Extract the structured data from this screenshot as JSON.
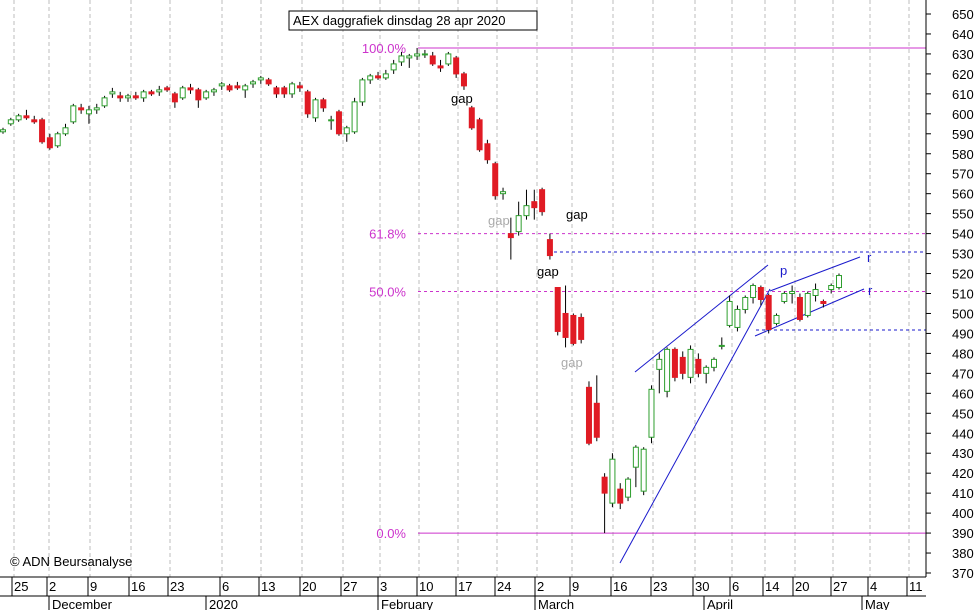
{
  "title": "AEX daggrafiek dinsdag 28 apr 2020",
  "copyright": "© ADN Beursanalyse",
  "colors": {
    "up": "#2e9e2e",
    "down": "#e01b24",
    "wick": "#000000",
    "fib": "#cc33cc",
    "trend": "#1a1acc",
    "grid": "#bdbdbd"
  },
  "chart_data": {
    "type": "candlestick",
    "title": "AEX daggrafiek dinsdag 28 apr 2020",
    "ylim": [
      365,
      655
    ],
    "yticks": [
      370,
      380,
      390,
      400,
      410,
      420,
      430,
      440,
      450,
      460,
      470,
      480,
      490,
      500,
      510,
      520,
      530,
      540,
      550,
      560,
      570,
      580,
      590,
      600,
      610,
      620,
      630,
      640,
      650
    ],
    "grid": "vertical dashed",
    "x_tick_labels": [
      "25",
      "2",
      "9",
      "16",
      "23",
      "6",
      "13",
      "20",
      "27",
      "3",
      "10",
      "17",
      "24",
      "2",
      "9",
      "16",
      "23",
      "30",
      "6",
      "14",
      "20",
      "27",
      "4",
      "11"
    ],
    "months": [
      "December",
      "2020",
      "February",
      "March",
      "April",
      "May"
    ],
    "fibonacci": [
      {
        "label": "100.0%",
        "value": 633
      },
      {
        "label": "61.8%",
        "value": 540
      },
      {
        "label": "50.0%",
        "value": 511
      },
      {
        "label": "0.0%",
        "value": 390
      }
    ],
    "annotations": [
      "gap",
      "gap",
      "gap",
      "gap",
      "gap",
      "p",
      "r",
      "r"
    ],
    "candles": [
      {
        "o": 591,
        "h": 593,
        "l": 590,
        "c": 592
      },
      {
        "o": 595,
        "h": 598,
        "l": 594,
        "c": 597
      },
      {
        "o": 597,
        "h": 600,
        "l": 596,
        "c": 599
      },
      {
        "o": 599,
        "h": 602,
        "l": 597,
        "c": 598
      },
      {
        "o": 597,
        "h": 599,
        "l": 595,
        "c": 596
      },
      {
        "o": 597,
        "h": 598,
        "l": 585,
        "c": 586
      },
      {
        "o": 588,
        "h": 590,
        "l": 582,
        "c": 583
      },
      {
        "o": 584,
        "h": 591,
        "l": 583,
        "c": 590
      },
      {
        "o": 590,
        "h": 595,
        "l": 589,
        "c": 593
      },
      {
        "o": 596,
        "h": 605,
        "l": 595,
        "c": 604
      },
      {
        "o": 603,
        "h": 605,
        "l": 600,
        "c": 602
      },
      {
        "o": 600,
        "h": 604,
        "l": 595,
        "c": 602
      },
      {
        "o": 602,
        "h": 605,
        "l": 600,
        "c": 603
      },
      {
        "o": 604,
        "h": 609,
        "l": 603,
        "c": 608
      },
      {
        "o": 610,
        "h": 613,
        "l": 608,
        "c": 611
      },
      {
        "o": 609,
        "h": 611,
        "l": 606,
        "c": 608
      },
      {
        "o": 608,
        "h": 610,
        "l": 606,
        "c": 609
      },
      {
        "o": 609,
        "h": 611,
        "l": 607,
        "c": 608
      },
      {
        "o": 608,
        "h": 612,
        "l": 606,
        "c": 611
      },
      {
        "o": 611,
        "h": 612,
        "l": 609,
        "c": 610
      },
      {
        "o": 611,
        "h": 614,
        "l": 609,
        "c": 612
      },
      {
        "o": 613,
        "h": 614,
        "l": 611,
        "c": 612
      },
      {
        "o": 610,
        "h": 611,
        "l": 603,
        "c": 606
      },
      {
        "o": 608,
        "h": 614,
        "l": 607,
        "c": 613
      },
      {
        "o": 613,
        "h": 615,
        "l": 610,
        "c": 612
      },
      {
        "o": 612,
        "h": 613,
        "l": 603,
        "c": 607
      },
      {
        "o": 608,
        "h": 612,
        "l": 607,
        "c": 611
      },
      {
        "o": 611,
        "h": 613,
        "l": 609,
        "c": 612
      },
      {
        "o": 614,
        "h": 616,
        "l": 612,
        "c": 615
      },
      {
        "o": 614,
        "h": 615,
        "l": 611,
        "c": 612
      },
      {
        "o": 614,
        "h": 616,
        "l": 612,
        "c": 613
      },
      {
        "o": 612,
        "h": 615,
        "l": 608,
        "c": 614
      },
      {
        "o": 615,
        "h": 617,
        "l": 613,
        "c": 616
      },
      {
        "o": 617,
        "h": 619,
        "l": 615,
        "c": 618
      },
      {
        "o": 617,
        "h": 618,
        "l": 614,
        "c": 615
      },
      {
        "o": 613,
        "h": 614,
        "l": 608,
        "c": 610
      },
      {
        "o": 613,
        "h": 614,
        "l": 608,
        "c": 610
      },
      {
        "o": 610,
        "h": 616,
        "l": 608,
        "c": 615
      },
      {
        "o": 614,
        "h": 616,
        "l": 611,
        "c": 613
      },
      {
        "o": 611,
        "h": 612,
        "l": 598,
        "c": 600
      },
      {
        "o": 598,
        "h": 608,
        "l": 596,
        "c": 607
      },
      {
        "o": 607,
        "h": 608,
        "l": 601,
        "c": 603
      },
      {
        "o": 597,
        "h": 599,
        "l": 592,
        "c": 597
      },
      {
        "o": 601,
        "h": 602,
        "l": 589,
        "c": 590
      },
      {
        "o": 590,
        "h": 594,
        "l": 586,
        "c": 593
      },
      {
        "o": 591,
        "h": 608,
        "l": 590,
        "c": 606
      },
      {
        "o": 606,
        "h": 618,
        "l": 604,
        "c": 617
      },
      {
        "o": 617,
        "h": 620,
        "l": 615,
        "c": 619
      },
      {
        "o": 619,
        "h": 621,
        "l": 617,
        "c": 618
      },
      {
        "o": 618,
        "h": 622,
        "l": 617,
        "c": 620
      },
      {
        "o": 622,
        "h": 627,
        "l": 620,
        "c": 625
      },
      {
        "o": 626,
        "h": 631,
        "l": 624,
        "c": 629
      },
      {
        "o": 628,
        "h": 630,
        "l": 623,
        "c": 629
      },
      {
        "o": 629,
        "h": 633,
        "l": 627,
        "c": 630
      },
      {
        "o": 630,
        "h": 632,
        "l": 628,
        "c": 630
      },
      {
        "o": 629,
        "h": 631,
        "l": 624,
        "c": 625
      },
      {
        "o": 624,
        "h": 627,
        "l": 621,
        "c": 623
      },
      {
        "o": 625,
        "h": 631,
        "l": 624,
        "c": 630
      },
      {
        "o": 628,
        "h": 629,
        "l": 618,
        "c": 620
      },
      {
        "o": 620,
        "h": 621,
        "l": 612,
        "c": 614
      },
      {
        "o": 603,
        "h": 604,
        "l": 592,
        "c": 593
      },
      {
        "o": 597,
        "h": 598,
        "l": 581,
        "c": 582
      },
      {
        "o": 585,
        "h": 587,
        "l": 575,
        "c": 577
      },
      {
        "o": 575,
        "h": 576,
        "l": 557,
        "c": 559
      },
      {
        "o": 560,
        "h": 563,
        "l": 557,
        "c": 561
      },
      {
        "o": 540,
        "h": 548,
        "l": 527,
        "c": 538
      },
      {
        "o": 541,
        "h": 556,
        "l": 539,
        "c": 549
      },
      {
        "o": 549,
        "h": 562,
        "l": 547,
        "c": 554
      },
      {
        "o": 556,
        "h": 562,
        "l": 547,
        "c": 553
      },
      {
        "o": 562,
        "h": 563,
        "l": 549,
        "c": 551
      },
      {
        "o": 537,
        "h": 540,
        "l": 527,
        "c": 529
      },
      {
        "o": 513,
        "h": 513,
        "l": 489,
        "c": 491
      },
      {
        "o": 500,
        "h": 514,
        "l": 483,
        "c": 488
      },
      {
        "o": 499,
        "h": 500,
        "l": 484,
        "c": 485
      },
      {
        "o": 498,
        "h": 500,
        "l": 485,
        "c": 487
      },
      {
        "o": 463,
        "h": 466,
        "l": 434,
        "c": 435
      },
      {
        "o": 455,
        "h": 469,
        "l": 436,
        "c": 438
      },
      {
        "o": 418,
        "h": 420,
        "l": 390,
        "c": 410
      },
      {
        "o": 405,
        "h": 430,
        "l": 403,
        "c": 427
      },
      {
        "o": 412,
        "h": 415,
        "l": 402,
        "c": 405
      },
      {
        "o": 408,
        "h": 418,
        "l": 406,
        "c": 417
      },
      {
        "o": 423,
        "h": 434,
        "l": 413,
        "c": 433
      },
      {
        "o": 411,
        "h": 433,
        "l": 409,
        "c": 432
      },
      {
        "o": 438,
        "h": 464,
        "l": 435,
        "c": 462
      },
      {
        "o": 472,
        "h": 480,
        "l": 460,
        "c": 477
      },
      {
        "o": 461,
        "h": 483,
        "l": 458,
        "c": 482
      },
      {
        "o": 482,
        "h": 483,
        "l": 466,
        "c": 468
      },
      {
        "o": 478,
        "h": 481,
        "l": 467,
        "c": 470
      },
      {
        "o": 468,
        "h": 484,
        "l": 465,
        "c": 482
      },
      {
        "o": 477,
        "h": 480,
        "l": 468,
        "c": 470
      },
      {
        "o": 470,
        "h": 474,
        "l": 465,
        "c": 473
      },
      {
        "o": 473,
        "h": 478,
        "l": 471,
        "c": 477
      },
      {
        "o": 484,
        "h": 488,
        "l": 482,
        "c": 484
      },
      {
        "o": 494,
        "h": 509,
        "l": 493,
        "c": 506
      },
      {
        "o": 493,
        "h": 504,
        "l": 491,
        "c": 502
      },
      {
        "o": 502,
        "h": 509,
        "l": 500,
        "c": 508
      },
      {
        "o": 508,
        "h": 515,
        "l": 505,
        "c": 514
      },
      {
        "o": 513,
        "h": 514,
        "l": 504,
        "c": 507
      },
      {
        "o": 509,
        "h": 510,
        "l": 490,
        "c": 492
      },
      {
        "o": 495,
        "h": 500,
        "l": 494,
        "c": 499
      },
      {
        "o": 506,
        "h": 511,
        "l": 505,
        "c": 510
      },
      {
        "o": 510,
        "h": 514,
        "l": 505,
        "c": 511
      },
      {
        "o": 508,
        "h": 510,
        "l": 496,
        "c": 497
      },
      {
        "o": 499,
        "h": 511,
        "l": 498,
        "c": 510
      },
      {
        "o": 509,
        "h": 515,
        "l": 506,
        "c": 512
      },
      {
        "o": 506,
        "h": 507,
        "l": 503,
        "c": 505
      },
      {
        "o": 512,
        "h": 515,
        "l": 510,
        "c": 514
      },
      {
        "o": 513,
        "h": 520,
        "l": 512,
        "c": 519
      }
    ]
  }
}
